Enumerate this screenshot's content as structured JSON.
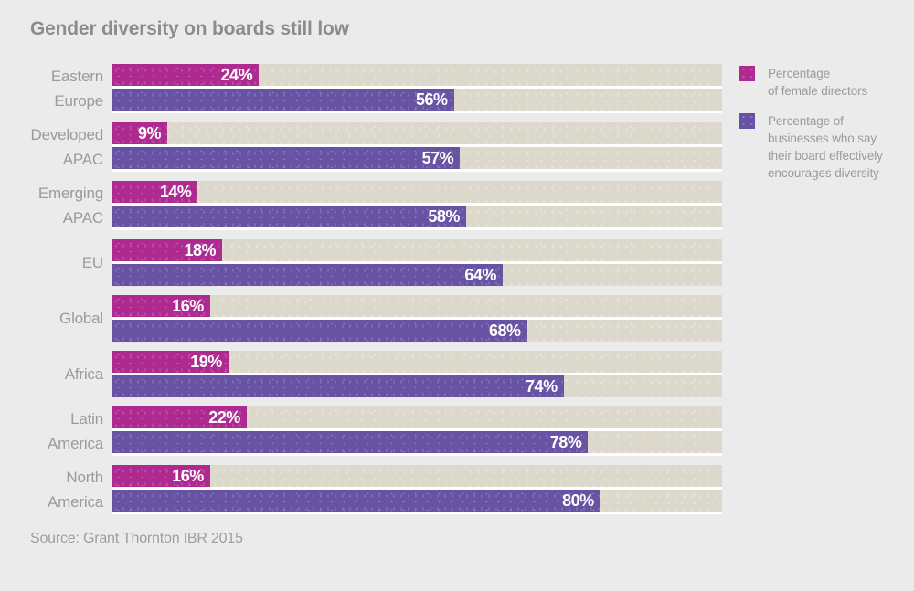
{
  "title": "Gender diversity on boards still low",
  "source": "Source: Grant Thornton IBR 2015",
  "colors": {
    "page_background": "#ebebeb",
    "bar_track": "#dcd8cb",
    "female_directors": "#ae2a90",
    "board_diversity": "#6752a3",
    "title_text": "#8c8c8c",
    "label_text": "#9b9b9b",
    "value_text": "#ffffff"
  },
  "legend": [
    {
      "key": "female-directors",
      "color": "#ae2a90",
      "label": "Percentage\nof female directors"
    },
    {
      "key": "board-diversity",
      "color": "#6752a3",
      "label": "Percentage of\nbusinesses who say\ntheir board effectively\nencourages diversity"
    }
  ],
  "chart_data": {
    "type": "bar",
    "orientation": "horizontal",
    "title": "Gender diversity on boards still low",
    "xlabel": "",
    "ylabel": "",
    "xlim": [
      0,
      100
    ],
    "grid": false,
    "legend_position": "right",
    "value_suffix": "%",
    "track_color": "#dcd8cb",
    "categories": [
      "Eastern Europe",
      "Developed APAC",
      "Emerging APAC",
      "EU",
      "Global",
      "Africa",
      "Latin America",
      "North America"
    ],
    "category_lines": [
      [
        "Eastern",
        "Europe"
      ],
      [
        "Developed",
        "APAC"
      ],
      [
        "Emerging",
        "APAC"
      ],
      [
        "EU"
      ],
      [
        "Global"
      ],
      [
        "Africa"
      ],
      [
        "Latin",
        "America"
      ],
      [
        "North",
        "America"
      ]
    ],
    "series": [
      {
        "key": "female-directors",
        "name": "Percentage of female directors",
        "color": "#ae2a90",
        "values": [
          24,
          9,
          14,
          18,
          16,
          19,
          22,
          16
        ]
      },
      {
        "key": "board-diversity",
        "name": "Percentage of businesses who say their board effectively encourages diversity",
        "color": "#6752a3",
        "values": [
          56,
          57,
          58,
          64,
          68,
          74,
          78,
          80
        ]
      }
    ]
  }
}
